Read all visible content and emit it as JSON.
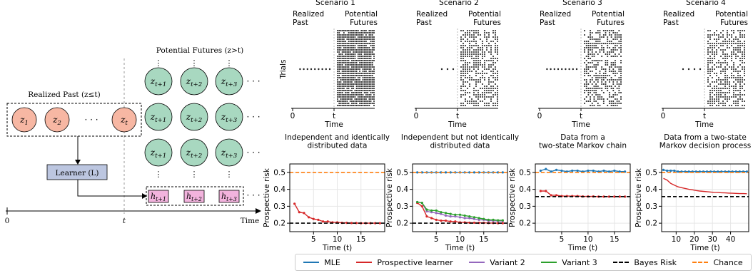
{
  "diagram": {
    "realized_past_label": "Realized Past (z≤t)",
    "potential_futures_label": "Potential Futures (z>t)",
    "past_nodes": [
      {
        "base": "z",
        "sub": "1"
      },
      {
        "base": "z",
        "sub": "2"
      },
      {
        "base": "z",
        "sub": "t"
      }
    ],
    "future_nodes": [
      {
        "base": "z",
        "sub": "t+1"
      },
      {
        "base": "z",
        "sub": "t+2"
      },
      {
        "base": "z",
        "sub": "t+3"
      }
    ],
    "hypothesis_nodes": [
      {
        "base": "h",
        "sub": "t+1"
      },
      {
        "base": "h",
        "sub": "t+2"
      },
      {
        "base": "h",
        "sub": "t+3"
      }
    ],
    "ellipsis": "· · ·",
    "vdots": "⋮",
    "learner_label": "Learner (L)",
    "axis_start": "0",
    "axis_t": "t",
    "axis_end": "Time",
    "colors": {
      "past": "#f7b7a3",
      "future": "#a8d8c0",
      "hypothesis": "#f2b3dd",
      "learner": "#bcc6e0"
    }
  },
  "scenarios": [
    {
      "title": "Scenario 1",
      "past_label": [
        "Realized",
        "Past"
      ],
      "future_label": [
        "Potential",
        "Futures"
      ],
      "ylabel": "Trials",
      "xticks": [
        "0",
        "t"
      ],
      "xlabel": "Time",
      "past_points": 9,
      "future_columns": 24
    },
    {
      "title": "Scenario 2",
      "past_label": [
        "Realized",
        "Past"
      ],
      "future_label": [
        "Potential",
        "Futures"
      ],
      "xticks": [
        "0",
        "t"
      ],
      "xlabel": "Time",
      "past_points": 3,
      "future_columns": 18
    },
    {
      "title": "Scenario 3",
      "past_label": [
        "Realized",
        "Past"
      ],
      "future_label": [
        "Potential",
        "Futures"
      ],
      "xticks": [
        "0",
        "t"
      ],
      "xlabel": "Time",
      "past_points": 9,
      "future_columns": 20
    },
    {
      "title": "Scenario 4",
      "past_label": [
        "Realized",
        "Past"
      ],
      "future_label": [
        "Potential",
        "Futures"
      ],
      "xticks": [
        "0",
        "t"
      ],
      "xlabel": "Time",
      "past_points": 4,
      "future_columns": 18
    }
  ],
  "legend": [
    {
      "name": "MLE",
      "color": "#1f77b4",
      "dash": false
    },
    {
      "name": "Prospective learner",
      "color": "#d62728",
      "dash": false
    },
    {
      "name": "Variant 2",
      "color": "#9467bd",
      "dash": false
    },
    {
      "name": "Variant 3",
      "color": "#2ca02c",
      "dash": false
    },
    {
      "name": "Bayes Risk",
      "color": "#000000",
      "dash": true
    },
    {
      "name": "Chance",
      "color": "#ff7f0e",
      "dash": true
    }
  ],
  "chart_data": [
    {
      "type": "line",
      "title": [
        "Independent and identically",
        "distributed data"
      ],
      "xlabel": "Time (t)",
      "ylabel": "Prospective risk",
      "xlim": [
        0,
        20
      ],
      "ylim": [
        0.15,
        0.55
      ],
      "xticks": [
        5,
        10,
        15
      ],
      "yticks": [
        0.2,
        0.3,
        0.4,
        0.5
      ],
      "grid": true,
      "series": [
        {
          "name": "Prospective learner",
          "x": [
            1,
            2,
            3,
            4,
            5,
            6,
            7,
            8,
            9,
            10,
            11,
            12,
            13,
            14,
            15,
            16,
            17,
            18,
            19
          ],
          "y": [
            0.315,
            0.265,
            0.26,
            0.235,
            0.225,
            0.22,
            0.21,
            0.21,
            0.205,
            0.205,
            0.202,
            0.202,
            0.201,
            0.201,
            0.2,
            0.2,
            0.2,
            0.2,
            0.2
          ],
          "markers": true
        },
        {
          "name": "Bayes Risk",
          "x": [
            0,
            20
          ],
          "y": [
            0.2,
            0.2
          ]
        },
        {
          "name": "Chance",
          "x": [
            0,
            20
          ],
          "y": [
            0.5,
            0.5
          ]
        }
      ]
    },
    {
      "type": "line",
      "title": [
        "Independent but not identically",
        "distributed data"
      ],
      "xlabel": "Time (t)",
      "ylabel": "Prospective risk",
      "xlim": [
        0,
        20
      ],
      "ylim": [
        0.15,
        0.55
      ],
      "xticks": [
        5,
        10,
        15
      ],
      "yticks": [
        0.2,
        0.3,
        0.4,
        0.5
      ],
      "grid": true,
      "series": [
        {
          "name": "MLE",
          "x": [
            1,
            2,
            3,
            4,
            5,
            6,
            7,
            8,
            9,
            10,
            11,
            12,
            13,
            14,
            15,
            16,
            17,
            18,
            19
          ],
          "y": [
            0.5,
            0.5,
            0.5,
            0.5,
            0.5,
            0.5,
            0.5,
            0.5,
            0.5,
            0.5,
            0.5,
            0.5,
            0.5,
            0.5,
            0.5,
            0.5,
            0.5,
            0.5,
            0.5
          ],
          "markers": true
        },
        {
          "name": "Prospective learner",
          "x": [
            1,
            2,
            3,
            4,
            5,
            6,
            7,
            8,
            9,
            10,
            11,
            12,
            13,
            14,
            15,
            16,
            17,
            18,
            19
          ],
          "y": [
            0.32,
            0.3,
            0.24,
            0.23,
            0.22,
            0.215,
            0.215,
            0.21,
            0.21,
            0.205,
            0.205,
            0.203,
            0.203,
            0.202,
            0.202,
            0.201,
            0.201,
            0.2,
            0.2
          ],
          "markers": true
        },
        {
          "name": "Variant 2",
          "x": [
            1,
            2,
            3,
            4,
            5,
            6,
            7,
            8,
            9,
            10,
            11,
            12,
            13,
            14,
            15,
            16,
            17,
            18,
            19
          ],
          "y": [
            0.325,
            0.32,
            0.27,
            0.265,
            0.26,
            0.255,
            0.245,
            0.24,
            0.24,
            0.235,
            0.23,
            0.23,
            0.225,
            0.22,
            0.22,
            0.215,
            0.215,
            0.213,
            0.213
          ],
          "markers": true
        },
        {
          "name": "Variant 3",
          "x": [
            1,
            2,
            3,
            4,
            5,
            6,
            7,
            8,
            9,
            10,
            11,
            12,
            13,
            14,
            15,
            16,
            17,
            18,
            19
          ],
          "y": [
            0.325,
            0.32,
            0.28,
            0.275,
            0.275,
            0.265,
            0.26,
            0.255,
            0.25,
            0.25,
            0.245,
            0.24,
            0.235,
            0.23,
            0.225,
            0.22,
            0.22,
            0.217,
            0.217
          ],
          "markers": true
        },
        {
          "name": "Bayes Risk",
          "x": [
            0,
            20
          ],
          "y": [
            0.2,
            0.2
          ]
        },
        {
          "name": "Chance",
          "x": [
            0,
            20
          ],
          "y": [
            0.5,
            0.5
          ]
        }
      ]
    },
    {
      "type": "line",
      "title": [
        "Data from a",
        "two-state Markov chain"
      ],
      "xlabel": "Time (t)",
      "ylabel": "Prospective risk",
      "xlim": [
        0,
        18
      ],
      "ylim": [
        0.15,
        0.55
      ],
      "xticks": [
        5,
        10,
        15
      ],
      "yticks": [
        0.2,
        0.3,
        0.4,
        0.5
      ],
      "grid": true,
      "series": [
        {
          "name": "MLE",
          "x": [
            1,
            2,
            3,
            4,
            5,
            6,
            7,
            8,
            9,
            10,
            11,
            12,
            13,
            14,
            15,
            16,
            17
          ],
          "y": [
            0.51,
            0.52,
            0.505,
            0.515,
            0.51,
            0.505,
            0.51,
            0.51,
            0.505,
            0.51,
            0.51,
            0.505,
            0.51,
            0.505,
            0.51,
            0.505,
            0.505
          ],
          "markers": true
        },
        {
          "name": "Prospective learner",
          "x": [
            1,
            2,
            3,
            4,
            5,
            6,
            7,
            8,
            9,
            10,
            11,
            12,
            13,
            14,
            15,
            16,
            17
          ],
          "y": [
            0.39,
            0.39,
            0.365,
            0.365,
            0.36,
            0.36,
            0.36,
            0.36,
            0.358,
            0.358,
            0.358,
            0.357,
            0.357,
            0.357,
            0.357,
            0.357,
            0.357
          ],
          "markers": true
        },
        {
          "name": "Bayes Risk",
          "x": [
            0,
            18
          ],
          "y": [
            0.357,
            0.357
          ]
        },
        {
          "name": "Chance",
          "x": [
            0,
            18
          ],
          "y": [
            0.5,
            0.5
          ]
        }
      ]
    },
    {
      "type": "line",
      "title": [
        "Data from a two-state",
        "Markov decision process"
      ],
      "xlabel": "Time (t)",
      "ylabel": "Prospective risk",
      "xlim": [
        2,
        50
      ],
      "ylim": [
        0.15,
        0.55
      ],
      "xticks": [
        10,
        20,
        30,
        40
      ],
      "yticks": [
        0.2,
        0.3,
        0.4,
        0.5
      ],
      "grid": true,
      "series": [
        {
          "name": "MLE",
          "x": [
            3,
            5,
            7,
            9,
            11,
            13,
            15,
            17,
            19,
            21,
            23,
            25,
            27,
            29,
            31,
            33,
            35,
            37,
            39,
            41,
            43,
            45,
            47,
            49
          ],
          "y": [
            0.515,
            0.51,
            0.51,
            0.51,
            0.505,
            0.505,
            0.505,
            0.505,
            0.505,
            0.505,
            0.505,
            0.505,
            0.505,
            0.505,
            0.505,
            0.505,
            0.505,
            0.505,
            0.505,
            0.505,
            0.505,
            0.505,
            0.505,
            0.505
          ],
          "markers": true
        },
        {
          "name": "Prospective learner",
          "x": [
            3,
            5,
            7,
            9,
            11,
            13,
            15,
            17,
            19,
            21,
            23,
            25,
            27,
            29,
            31,
            33,
            35,
            37,
            39,
            41,
            43,
            45,
            47,
            49
          ],
          "y": [
            0.465,
            0.455,
            0.435,
            0.425,
            0.415,
            0.41,
            0.405,
            0.4,
            0.397,
            0.393,
            0.39,
            0.388,
            0.386,
            0.384,
            0.382,
            0.381,
            0.38,
            0.379,
            0.378,
            0.377,
            0.376,
            0.375,
            0.375,
            0.374
          ],
          "markers": false
        },
        {
          "name": "Bayes Risk",
          "x": [
            2,
            50
          ],
          "y": [
            0.357,
            0.357
          ]
        },
        {
          "name": "Chance",
          "x": [
            2,
            50
          ],
          "y": [
            0.5,
            0.5
          ]
        }
      ]
    }
  ]
}
